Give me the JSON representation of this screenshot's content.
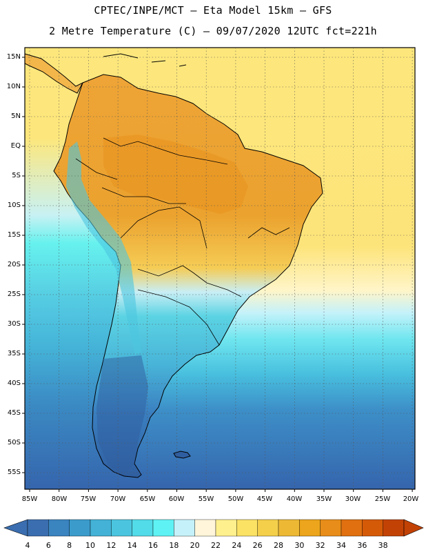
{
  "header": {
    "line1": "CPTEC/INPE/MCT –  Eta Model 15km – GFS",
    "line2": "2 Metre Temperature (C) – 09/07/2020 12UTC fct=221h"
  },
  "map": {
    "latitude_labels": [
      "15N",
      "10N",
      "5N",
      "EQ",
      "5S",
      "10S",
      "15S",
      "20S",
      "25S",
      "30S",
      "35S",
      "40S",
      "45S",
      "50S",
      "55S"
    ],
    "longitude_labels": [
      "85W",
      "80W",
      "75W",
      "70W",
      "65W",
      "60W",
      "55W",
      "50W",
      "45W",
      "40W",
      "35W",
      "30W",
      "25W",
      "20W"
    ]
  },
  "colorbar": {
    "labels": [
      "4",
      "6",
      "8",
      "10",
      "12",
      "14",
      "16",
      "18",
      "20",
      "22",
      "24",
      "26",
      "28",
      "30",
      "32",
      "34",
      "36",
      "38"
    ],
    "colors": [
      "#3a6eb0",
      "#3a84c0",
      "#3b9ccb",
      "#43b2d6",
      "#4bc5df",
      "#52dbe8",
      "#5ef2f4",
      "#c5f2fa",
      "#fff5da",
      "#fff08e",
      "#fbe264",
      "#f4cf4a",
      "#edb935",
      "#eca51c",
      "#e88d19",
      "#e07010",
      "#d55a08",
      "#c24205"
    ],
    "low_arrow_color": "#3a6eb0",
    "high_arrow_color": "#c24205"
  },
  "colors": {
    "ocean_warm": "#fde77c",
    "ocean_cool": "#54d2e6",
    "ocean_cold": "#3c6fb5",
    "land_hot": "#eea436",
    "land_mild": "#5bd3e3",
    "land_cold": "#2f5ea0"
  }
}
